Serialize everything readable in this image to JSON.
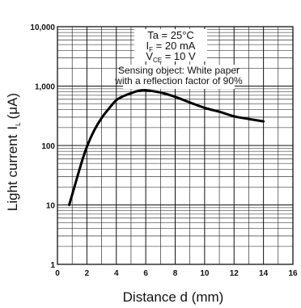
{
  "chart_data": {
    "type": "line",
    "title": "",
    "xlabel": "Distance d (mm)",
    "ylabel_main": "Light current",
    "ylabel_symbol": "I",
    "ylabel_sub": "L",
    "ylabel_unit": "(μA)",
    "xlim": [
      0,
      16
    ],
    "ylim": [
      1,
      10000
    ],
    "yscale": "log",
    "grid": true,
    "x_ticks": [
      "0",
      "2",
      "4",
      "6",
      "8",
      "10",
      "12",
      "14",
      "16"
    ],
    "y_ticks": [
      "1",
      "10",
      "100",
      "1,000",
      "10,000"
    ],
    "series": [
      {
        "x": [
          0.8,
          1.2,
          1.6,
          2.0,
          2.5,
          3.0,
          3.5,
          4.0,
          4.5,
          5.0,
          5.5,
          6.0,
          7.0,
          8.0,
          9.0,
          10.0,
          11.0,
          12.0,
          13.0,
          14.0
        ],
        "values": [
          10,
          22,
          48,
          95,
          180,
          290,
          420,
          580,
          680,
          760,
          830,
          850,
          780,
          660,
          530,
          430,
          370,
          310,
          280,
          255
        ]
      }
    ]
  },
  "conditions": {
    "ta_label": "Ta = 25°C",
    "if_symbol": "I",
    "if_sub": "F",
    "if_value": " = 20 mA",
    "vce_symbol": "V",
    "vce_sub": "CE",
    "vce_value": " = 10 V",
    "sensing_line1": "Sensing object: White paper",
    "sensing_line2": "with a reflection factor of 90%"
  }
}
